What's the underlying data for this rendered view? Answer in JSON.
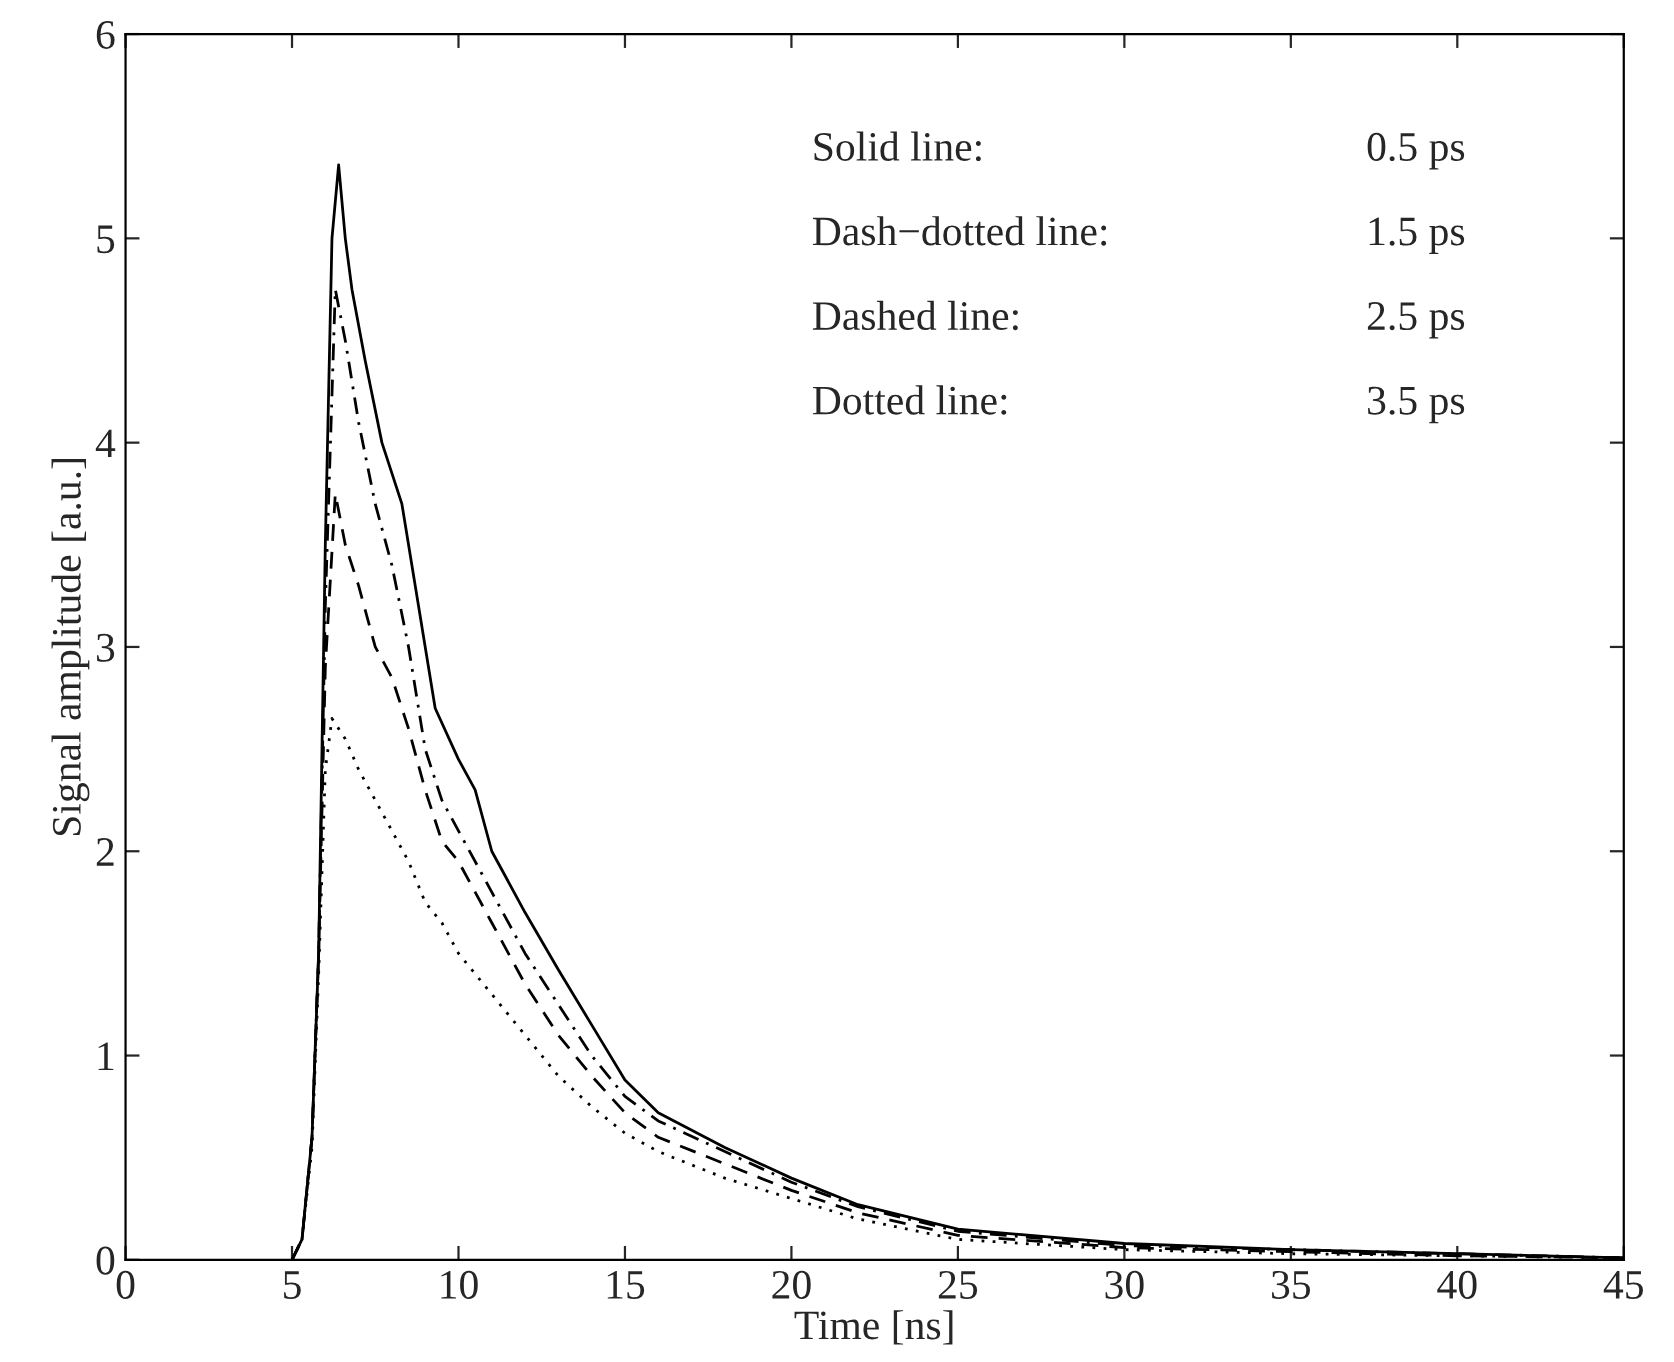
{
  "chart_data": {
    "type": "line",
    "xlabel": "Time [ns]",
    "ylabel": "Signal amplitude [a.u.]",
    "xlim": [
      0,
      45
    ],
    "ylim": [
      0,
      6
    ],
    "xticks": [
      0,
      5,
      10,
      15,
      20,
      25,
      30,
      35,
      40,
      45
    ],
    "yticks": [
      0,
      1,
      2,
      3,
      4,
      5,
      6
    ],
    "grid": false,
    "legend": false,
    "marker": "none",
    "annotations": [
      "Solid line:",
      "0.5 ps",
      "Dash−dotted line:",
      "1.5 ps",
      "Dashed line:",
      "2.5 ps",
      "Dotted line:",
      "3.5 ps"
    ],
    "series": [
      {
        "color": "#000000",
        "line_style": "solid",
        "x": [
          5.0,
          5.3,
          5.6,
          5.8,
          6.0,
          6.2,
          6.4,
          6.6,
          6.8,
          7.2,
          7.7,
          8.3,
          8.8,
          9.3,
          10,
          10.5,
          11,
          12,
          13,
          14,
          15,
          16,
          18,
          20,
          22,
          25,
          30,
          35,
          40,
          45
        ],
        "values": [
          0,
          0.1,
          0.6,
          1.5,
          3.5,
          5.0,
          5.36,
          5.0,
          4.75,
          4.4,
          4.0,
          3.7,
          3.2,
          2.7,
          2.45,
          2.3,
          2.0,
          1.7,
          1.42,
          1.15,
          0.88,
          0.72,
          0.55,
          0.4,
          0.27,
          0.15,
          0.08,
          0.05,
          0.03,
          0.01
        ]
      },
      {
        "color": "#000000",
        "line_style": "dashdot",
        "x": [
          5.0,
          5.3,
          5.6,
          5.8,
          6.0,
          6.3,
          6.6,
          7,
          7.5,
          8,
          8.5,
          9,
          9.5,
          10,
          11,
          12,
          13,
          14,
          15,
          16,
          18,
          20,
          22,
          25,
          30,
          35,
          40,
          45
        ],
        "values": [
          0,
          0.1,
          0.6,
          1.5,
          3.2,
          4.75,
          4.5,
          4.1,
          3.7,
          3.4,
          3.0,
          2.5,
          2.25,
          2.1,
          1.8,
          1.5,
          1.25,
          1.0,
          0.8,
          0.68,
          0.53,
          0.38,
          0.26,
          0.14,
          0.07,
          0.05,
          0.03,
          0.01
        ]
      },
      {
        "color": "#000000",
        "line_style": "dashed",
        "x": [
          5.0,
          5.3,
          5.6,
          5.8,
          6.0,
          6.3,
          6.6,
          7,
          7.5,
          8,
          8.5,
          9,
          9.5,
          10,
          11,
          12,
          13,
          14,
          15,
          16,
          18,
          20,
          22,
          25,
          30,
          35,
          40,
          45
        ],
        "values": [
          0,
          0.1,
          0.6,
          1.5,
          2.9,
          3.75,
          3.5,
          3.3,
          3.0,
          2.85,
          2.6,
          2.3,
          2.05,
          1.95,
          1.65,
          1.35,
          1.1,
          0.9,
          0.72,
          0.6,
          0.47,
          0.34,
          0.23,
          0.12,
          0.06,
          0.04,
          0.02,
          0.01
        ]
      },
      {
        "color": "#000000",
        "line_style": "dotted",
        "x": [
          5.0,
          5.3,
          5.6,
          5.8,
          6.0,
          6.2,
          6.6,
          7,
          7.5,
          8,
          8.5,
          9,
          9.5,
          10,
          11,
          12,
          13,
          14,
          15,
          16,
          18,
          20,
          22,
          25,
          30,
          35,
          40,
          45
        ],
        "values": [
          0,
          0.1,
          0.55,
          1.4,
          2.4,
          2.65,
          2.55,
          2.4,
          2.25,
          2.1,
          1.95,
          1.75,
          1.65,
          1.5,
          1.3,
          1.1,
          0.9,
          0.75,
          0.62,
          0.53,
          0.4,
          0.3,
          0.2,
          0.1,
          0.05,
          0.03,
          0.02,
          0.01
        ]
      }
    ]
  }
}
